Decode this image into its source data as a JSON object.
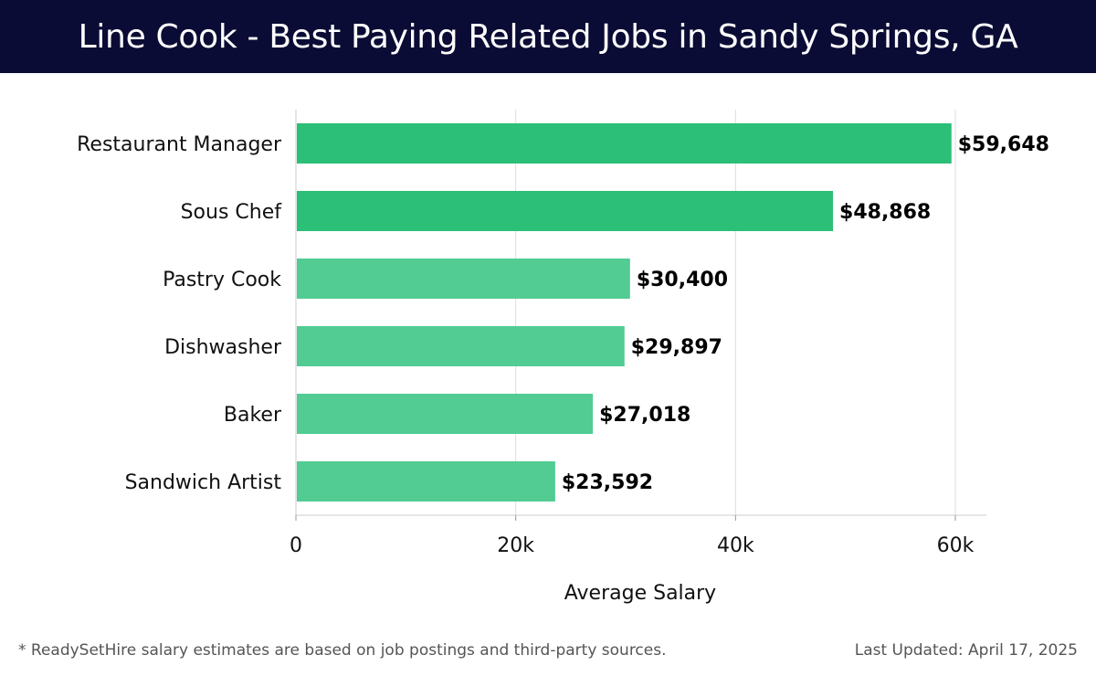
{
  "title": "Line Cook - Best Paying Related Jobs in Sandy Springs, GA",
  "footer": {
    "note": "* ReadySetHire salary estimates are based on job postings and third-party sources.",
    "updated": "Last Updated: April 17, 2025"
  },
  "colors": {
    "header_bg": "#0b0c35",
    "bar_top": "#2bbf77",
    "bar": "#52cc92",
    "grid": "#dddddd",
    "text": "#111111"
  },
  "chart_data": {
    "type": "bar",
    "orientation": "horizontal",
    "categories": [
      "Restaurant Manager",
      "Sous Chef",
      "Pastry Cook",
      "Dishwasher",
      "Baker",
      "Sandwich Artist"
    ],
    "values": [
      59648,
      48868,
      30400,
      29897,
      27018,
      23592
    ],
    "value_labels": [
      "$59,648",
      "$48,868",
      "$30,400",
      "$29,897",
      "$27,018",
      "$23,592"
    ],
    "xlabel": "Average Salary",
    "ylabel": "",
    "xlim": [
      0,
      63000
    ],
    "x_ticks": [
      0,
      20000,
      40000,
      60000
    ],
    "x_tick_labels": [
      "0",
      "20k",
      "40k",
      "60k"
    ],
    "grid": true
  }
}
